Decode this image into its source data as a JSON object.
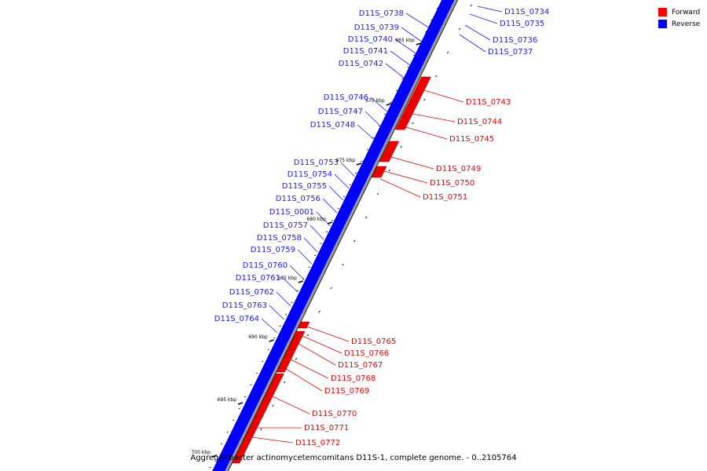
{
  "legend": [
    {
      "label": "Forward",
      "color": "#ff0000"
    },
    {
      "label": "Reverse",
      "color": "#0000ff"
    }
  ],
  "caption": "Aggregatibacter actinomycetemcomitans D11S-1, complete genome. - 0..2105764",
  "ticks": [
    "665 kbp",
    "670 kbp",
    "675 kbp",
    "680 kbp",
    "685 kbp",
    "690 kbp",
    "695 kbp",
    "700 kbp"
  ],
  "reverse_genes": [
    "D11S_0738",
    "D11S_0739",
    "D11S_0740",
    "D11S_0741",
    "D11S_0742",
    "D11S_0746",
    "D11S_0747",
    "D11S_0748",
    "D11S_0753",
    "D11S_0754",
    "D11S_0755",
    "D11S_0756",
    "D11S_0001",
    "D11S_0757",
    "D11S_0758",
    "D11S_0759",
    "D11S_0760",
    "D11S_0761",
    "D11S_0762",
    "D11S_0763",
    "D11S_0764"
  ],
  "forward_genes": [
    "D11S_0743",
    "D11S_0744",
    "D11S_0745",
    "D11S_0749",
    "D11S_0750",
    "D11S_0751",
    "D11S_0765",
    "D11S_0766",
    "D11S_0767",
    "D11S_0768",
    "D11S_0769",
    "D11S_0770",
    "D11S_0771",
    "D11S_0772"
  ],
  "right_reverse_genes": [
    "D11S_0734",
    "D11S_0735",
    "D11S_0736",
    "D11S_0737"
  ]
}
